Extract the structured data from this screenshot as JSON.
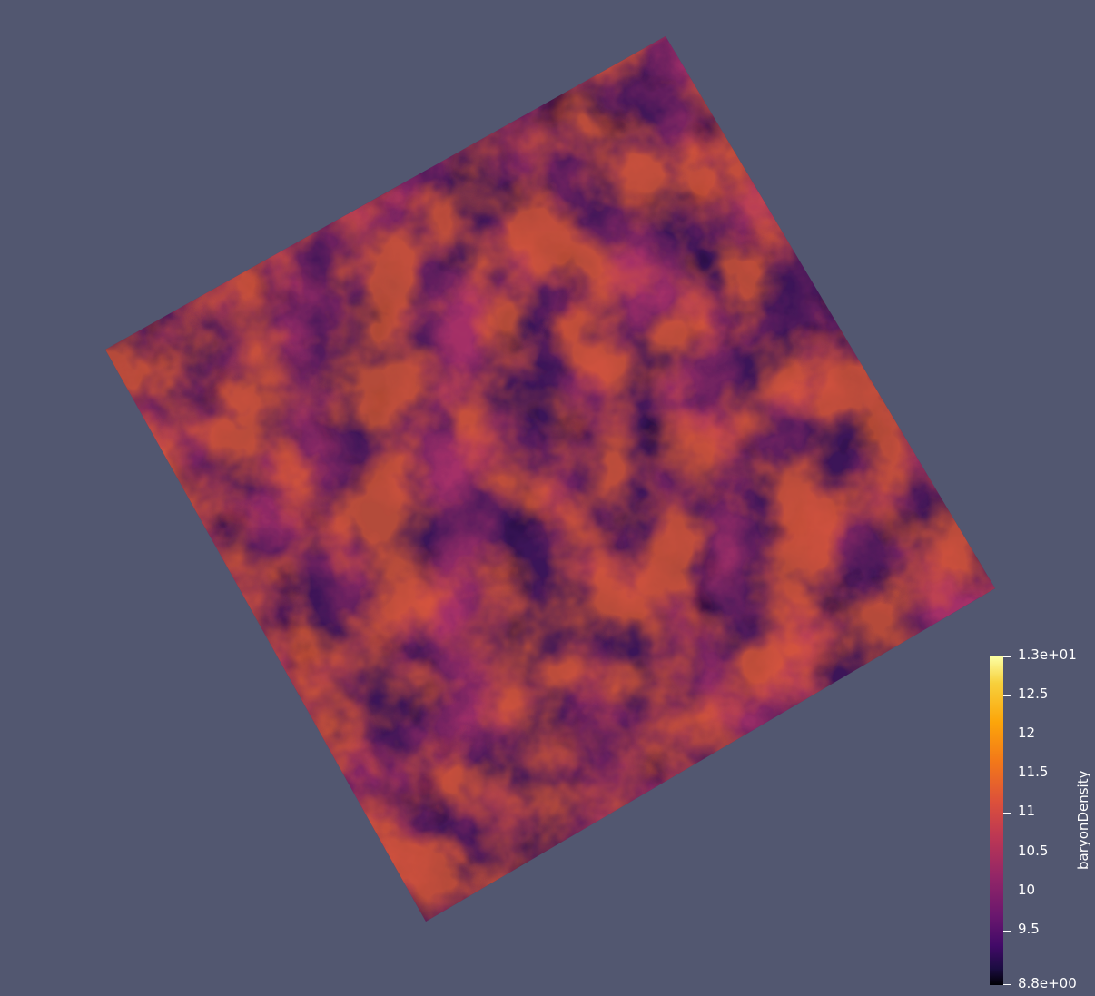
{
  "scene": {
    "background_color": "#525770",
    "colormap": "inferno",
    "field_name": "baryonDensity"
  },
  "colorbar": {
    "title": "baryonDensity",
    "range": [
      8.8,
      13
    ],
    "ticks": [
      {
        "value": 13,
        "label": "1.3e+01"
      },
      {
        "value": 12.5,
        "label": "12.5"
      },
      {
        "value": 12,
        "label": "12"
      },
      {
        "value": 11.5,
        "label": "11.5"
      },
      {
        "value": 11,
        "label": "11"
      },
      {
        "value": 10.5,
        "label": "10.5"
      },
      {
        "value": 10,
        "label": "10"
      },
      {
        "value": 9.5,
        "label": "9.5"
      },
      {
        "value": 8.8,
        "label": "8.8e+00"
      }
    ]
  }
}
